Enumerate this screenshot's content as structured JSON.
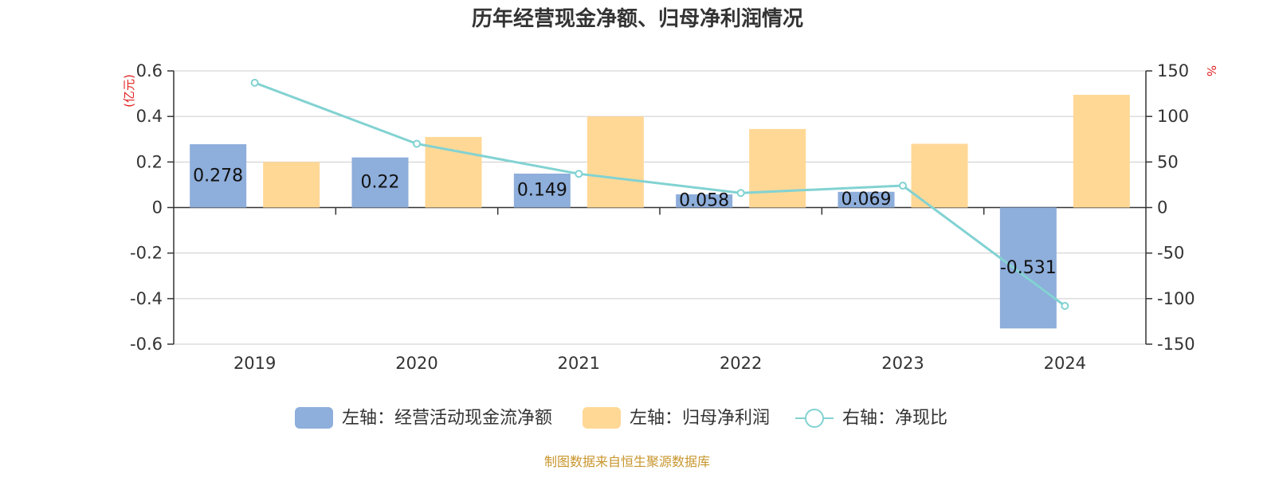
{
  "chart_data": {
    "type": "bar",
    "title": "历年经营现金净额、归母净利润情况",
    "categories": [
      "2019",
      "2020",
      "2021",
      "2022",
      "2023",
      "2024"
    ],
    "series": [
      {
        "name": "左轴：经营活动现金流净额",
        "axis": "left",
        "kind": "bar",
        "color": "#8eaedb",
        "values": [
          0.278,
          0.22,
          0.149,
          0.058,
          0.069,
          -0.531
        ],
        "labels": [
          "0.278",
          "0.22",
          "0.149",
          "0.058",
          "0.069",
          "-0.531"
        ]
      },
      {
        "name": "左轴：归母净利润",
        "axis": "left",
        "kind": "bar",
        "color": "#ffd896",
        "values": [
          0.2,
          0.31,
          0.4,
          0.345,
          0.28,
          0.495
        ]
      },
      {
        "name": "右轴：净现比",
        "axis": "right",
        "kind": "line",
        "color": "#82d2d2",
        "values": [
          137,
          70,
          37,
          16,
          24,
          -108
        ]
      }
    ],
    "left_axis": {
      "unit": "(亿元)",
      "ylim": [
        -0.6,
        0.6
      ],
      "ticks": [
        0.6,
        0.4,
        0.2,
        0,
        -0.2,
        -0.4,
        -0.6
      ],
      "tick_labels": [
        "0.6",
        "0.4",
        "0.2",
        "0",
        "-0.2",
        "-0.4",
        "-0.6"
      ]
    },
    "right_axis": {
      "unit": "%",
      "ylim": [
        -150,
        150
      ],
      "ticks": [
        150,
        100,
        50,
        0,
        -50,
        -100,
        -150
      ],
      "tick_labels": [
        "150",
        "100",
        "50",
        "0",
        "-50",
        "-100",
        "-150"
      ]
    },
    "grid": true,
    "legend_position": "bottom",
    "source": "制图数据来自恒生聚源数据库"
  }
}
